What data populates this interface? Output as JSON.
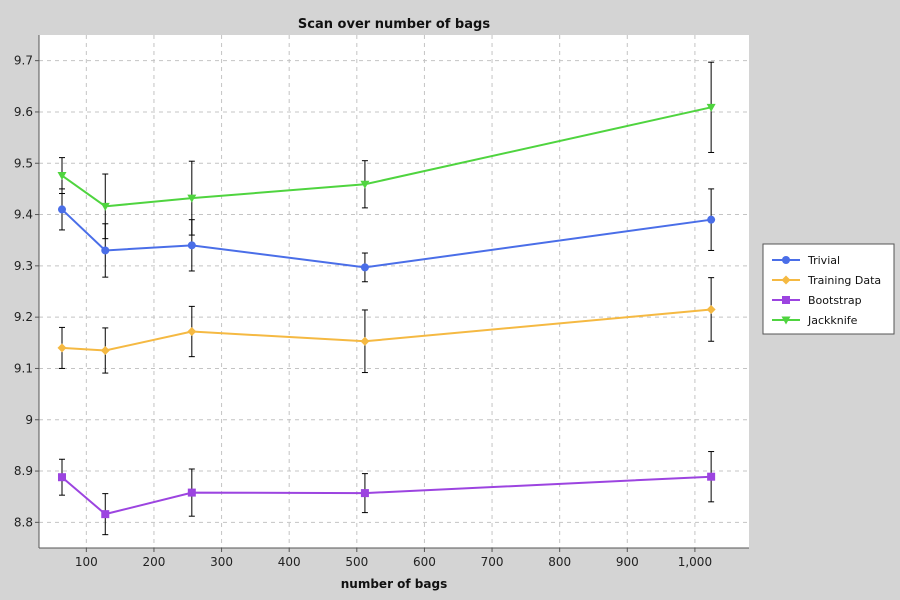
{
  "chart_data": {
    "type": "line",
    "title": "Scan over number of bags",
    "xlabel": "number of bags",
    "ylabel": "",
    "xlim": [
      30,
      1080
    ],
    "ylim": [
      8.75,
      9.75
    ],
    "x_ticks": [
      100,
      200,
      300,
      400,
      500,
      600,
      700,
      800,
      900,
      1000
    ],
    "x_tick_labels": [
      "100",
      "200",
      "300",
      "400",
      "500",
      "600",
      "700",
      "800",
      "900",
      "1,000"
    ],
    "y_ticks": [
      8.8,
      8.9,
      9.0,
      9.1,
      9.2,
      9.3,
      9.4,
      9.5,
      9.6,
      9.7
    ],
    "y_tick_labels": [
      "8.8",
      "8.9",
      "9",
      "9.1",
      "9.2",
      "9.3",
      "9.4",
      "9.5",
      "9.6",
      "9.7"
    ],
    "grid": true,
    "legend_position": "right",
    "x": [
      64,
      128,
      256,
      512,
      1024
    ],
    "series": [
      {
        "name": "Trivial",
        "color": "#4a6ee8",
        "marker": "circle",
        "values": [
          9.41,
          9.33,
          9.34,
          9.297,
          9.39
        ],
        "error": [
          0.04,
          0.052,
          0.05,
          0.028,
          0.06
        ]
      },
      {
        "name": "Training Data",
        "color": "#f5b942",
        "marker": "diamond",
        "values": [
          9.14,
          9.135,
          9.172,
          9.153,
          9.215
        ],
        "error": [
          0.04,
          0.044,
          0.049,
          0.061,
          0.062
        ]
      },
      {
        "name": "Bootstrap",
        "color": "#9c44e0",
        "marker": "square",
        "values": [
          8.888,
          8.816,
          8.858,
          8.857,
          8.889
        ],
        "error": [
          0.035,
          0.04,
          0.046,
          0.038,
          0.049
        ]
      },
      {
        "name": "Jackknife",
        "color": "#4fd43f",
        "marker": "triangle-down",
        "values": [
          9.476,
          9.416,
          9.432,
          9.459,
          9.609
        ],
        "error": [
          0.035,
          0.063,
          0.072,
          0.046,
          0.088
        ]
      }
    ]
  }
}
